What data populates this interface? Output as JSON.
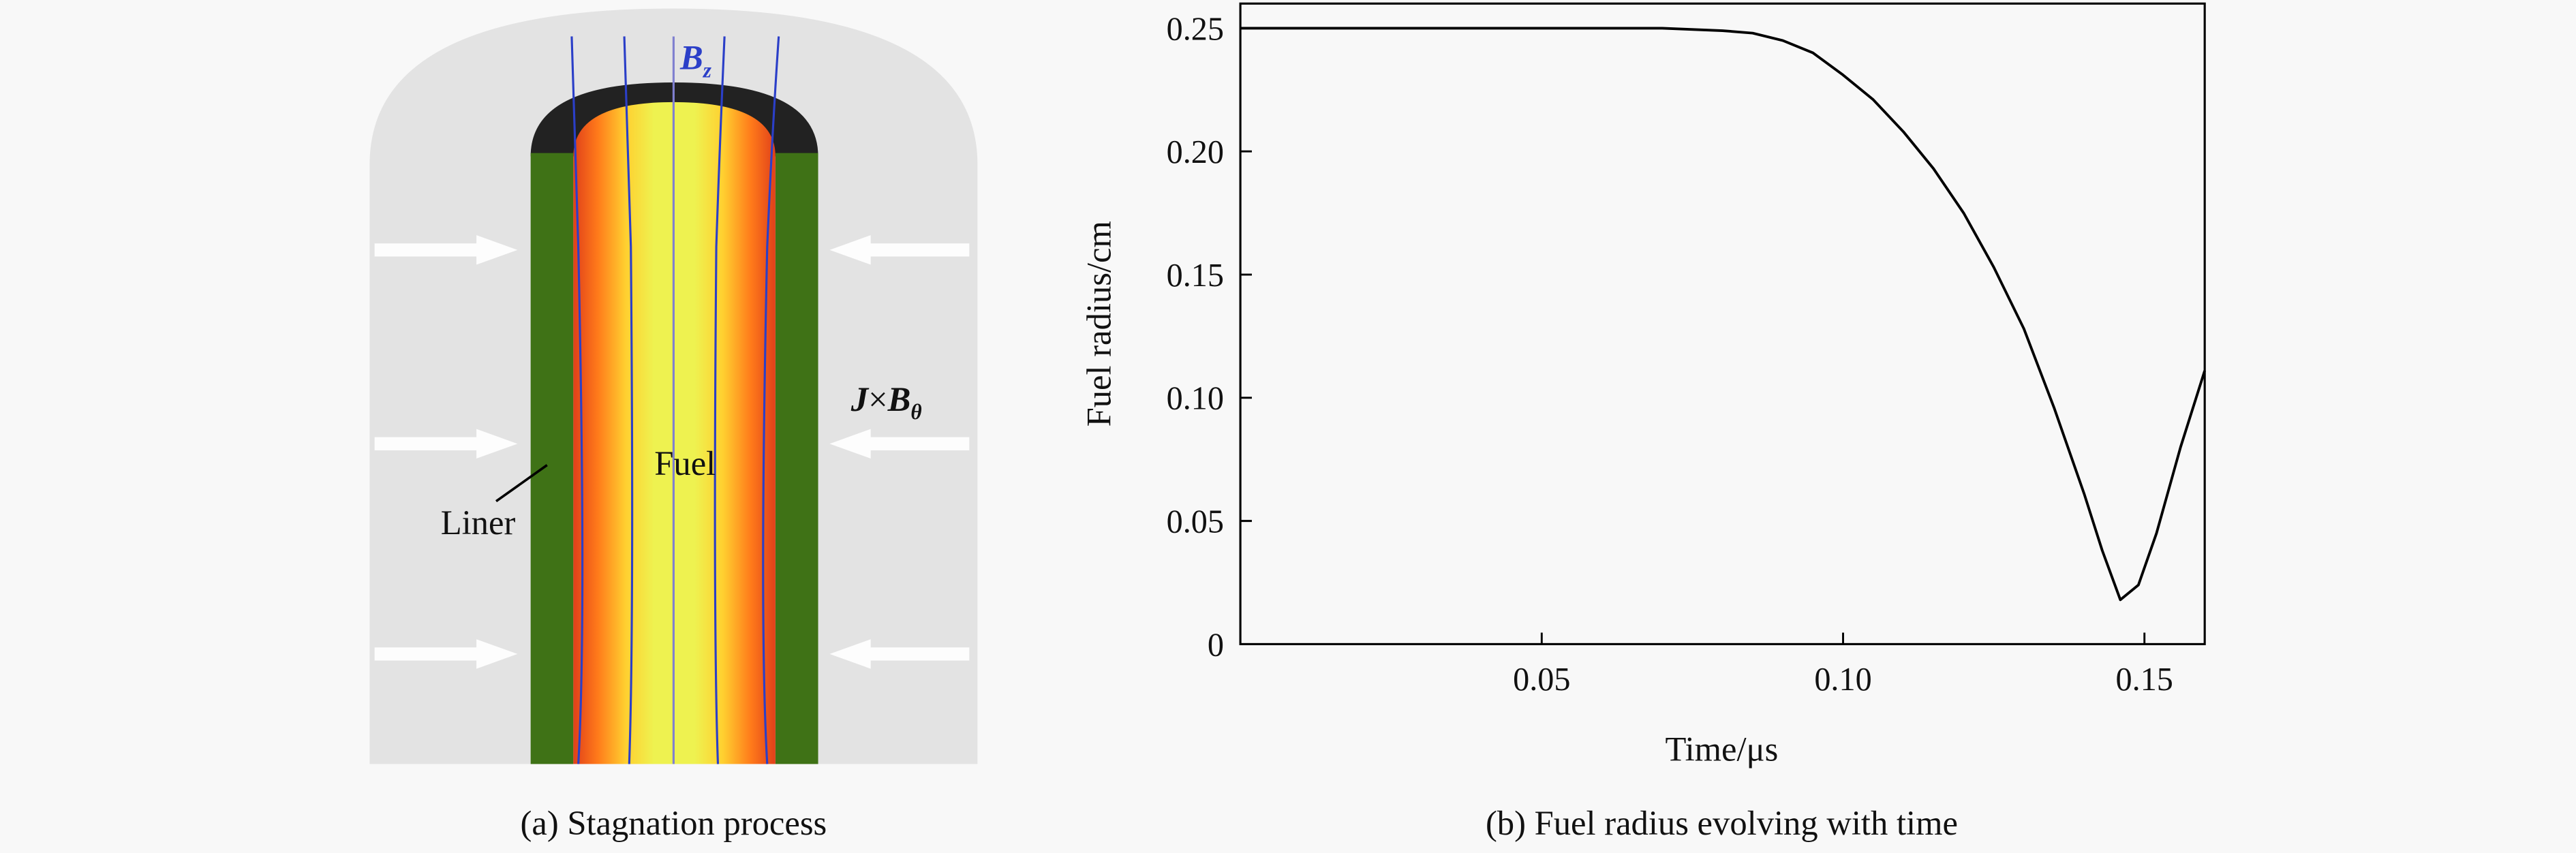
{
  "diagram": {
    "field_label": {
      "symbol": "B",
      "subscript": "z"
    },
    "force_label": {
      "j": "J",
      "times": "×",
      "b": "B",
      "subscript": "θ"
    },
    "fuel_label": "Fuel",
    "liner_label": "Liner",
    "caption": "(a) Stagnation process"
  },
  "chart_data": {
    "type": "line",
    "caption": "(b) Fuel radius evolving with time",
    "xlabel": "Time/μs",
    "ylabel": "Fuel radius/cm",
    "x": [
      0,
      0.02,
      0.04,
      0.06,
      0.07,
      0.08,
      0.085,
      0.09,
      0.095,
      0.1,
      0.105,
      0.11,
      0.115,
      0.12,
      0.125,
      0.13,
      0.135,
      0.14,
      0.143,
      0.146,
      0.149,
      0.152,
      0.156,
      0.16
    ],
    "series": [
      {
        "name": "Fuel radius",
        "color": "#000000",
        "values": [
          0.25,
          0.25,
          0.25,
          0.25,
          0.25,
          0.249,
          0.248,
          0.245,
          0.24,
          0.231,
          0.221,
          0.208,
          0.193,
          0.175,
          0.153,
          0.128,
          0.096,
          0.061,
          0.038,
          0.018,
          0.024,
          0.045,
          0.08,
          0.111
        ]
      }
    ],
    "xlim": [
      0,
      0.16
    ],
    "ylim": [
      0,
      0.26
    ],
    "xticks": [
      0.05,
      {
        "value": 0.1,
        "label": "0.10"
      },
      0.15
    ],
    "yticks": [
      0,
      0.05,
      {
        "value": 0.1,
        "label": "0.10"
      },
      0.15,
      {
        "value": 0.2,
        "label": "0.20"
      },
      0.25
    ]
  }
}
